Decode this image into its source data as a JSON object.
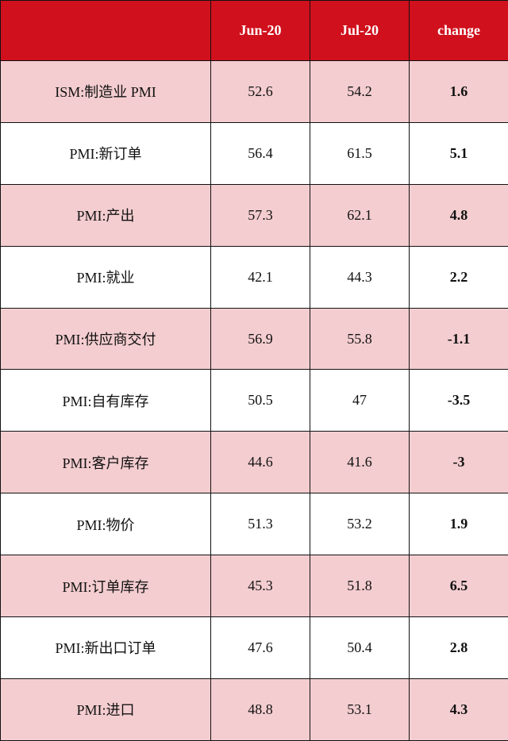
{
  "chart_data": {
    "type": "table",
    "columns": [
      "",
      "Jun-20",
      "Jul-20",
      "change"
    ],
    "rows": [
      {
        "label": "ISM:制造业 PMI",
        "jun": "52.6",
        "jul": "54.2",
        "change": "1.6"
      },
      {
        "label": "PMI:新订单",
        "jun": "56.4",
        "jul": "61.5",
        "change": "5.1"
      },
      {
        "label": "PMI:产出",
        "jun": "57.3",
        "jul": "62.1",
        "change": "4.8"
      },
      {
        "label": "PMI:就业",
        "jun": "42.1",
        "jul": "44.3",
        "change": "2.2"
      },
      {
        "label": "PMI:供应商交付",
        "jun": "56.9",
        "jul": "55.8",
        "change": "-1.1"
      },
      {
        "label": "PMI:自有库存",
        "jun": "50.5",
        "jul": "47",
        "change": "-3.5"
      },
      {
        "label": "PMI:客户库存",
        "jun": "44.6",
        "jul": "41.6",
        "change": "-3"
      },
      {
        "label": "PMI:物价",
        "jun": "51.3",
        "jul": "53.2",
        "change": "1.9"
      },
      {
        "label": "PMI:订单库存",
        "jun": "45.3",
        "jul": "51.8",
        "change": "6.5"
      },
      {
        "label": "PMI:新出口订单",
        "jun": "47.6",
        "jul": "50.4",
        "change": "2.8"
      },
      {
        "label": "PMI:进口",
        "jun": "48.8",
        "jul": "53.1",
        "change": "4.3"
      }
    ],
    "colors": {
      "header_background": "#d0101c",
      "header_text": "#ffffff",
      "shaded_row": "#f4cdd0",
      "plain_row": "#ffffff",
      "border": "#111111"
    }
  }
}
